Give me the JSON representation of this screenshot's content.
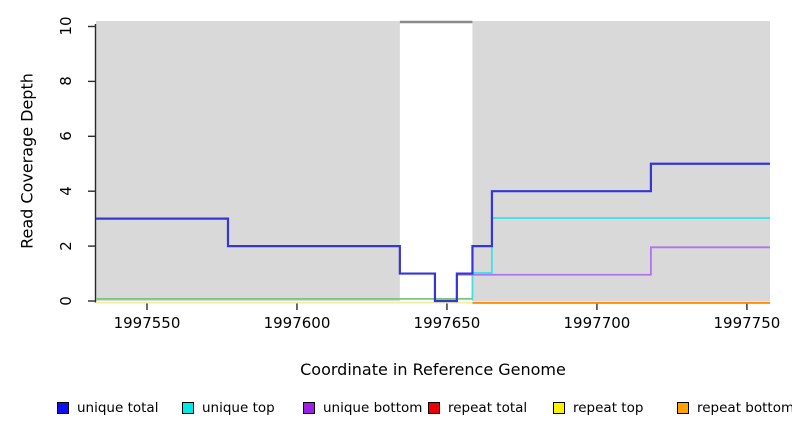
{
  "chart_data": {
    "type": "line",
    "subtype": "step",
    "title": "",
    "xlabel": "Coordinate in Reference Genome",
    "ylabel": "Read Coverage Depth",
    "xlim": [
      1997533,
      1997757.7
    ],
    "ylim": [
      0,
      10.2
    ],
    "x_ticks": [
      1997550,
      1997600,
      1997650,
      1997700,
      1997750
    ],
    "y_ticks": [
      0,
      2,
      4,
      6,
      8,
      10
    ],
    "grid": false,
    "panel_color": "#d9d9d9",
    "gap_region": {
      "from": 1997634.3,
      "to": 1997658.5,
      "fill": "#ffffff",
      "cap_color": "#8a8a8a"
    },
    "zero_overlap_line": {
      "color": "#7cc67c",
      "from": 1997533,
      "to": 1997658.5,
      "value": 0
    },
    "series": [
      {
        "name": "unique total",
        "line_color": "#3636d6",
        "hidden": false,
        "points": [
          [
            1997533,
            3
          ],
          [
            1997577,
            2
          ],
          [
            1997634.3,
            1
          ],
          [
            1997646,
            0
          ],
          [
            1997653.3,
            1
          ],
          [
            1997658.5,
            2
          ],
          [
            1997665,
            4
          ],
          [
            1997718,
            5
          ],
          [
            1997757.7,
            5
          ]
        ]
      },
      {
        "name": "unique top",
        "line_color": "#45e0e4",
        "hidden": false,
        "points": [
          [
            1997658.5,
            0
          ],
          [
            1997658.5,
            1
          ],
          [
            1997665,
            3
          ],
          [
            1997757.7,
            3
          ]
        ]
      },
      {
        "name": "unique bottom",
        "line_color": "#b273ee",
        "hidden": false,
        "points": [
          [
            1997653.3,
            0
          ],
          [
            1997653.3,
            1
          ],
          [
            1997718,
            2
          ],
          [
            1997757.7,
            2
          ]
        ]
      },
      {
        "name": "repeat total",
        "line_color": "#ee0000",
        "hidden": true,
        "points": [
          [
            1997533,
            0
          ],
          [
            1997757.7,
            0
          ]
        ]
      },
      {
        "name": "repeat top",
        "line_color": "#ededa6",
        "hidden": false,
        "points": [
          [
            1997533,
            0
          ],
          [
            1997658.5,
            0
          ]
        ]
      },
      {
        "name": "repeat bottom",
        "line_color": "#ff8c0a",
        "hidden": false,
        "points": [
          [
            1997658.5,
            0
          ],
          [
            1997757.7,
            0
          ]
        ]
      }
    ],
    "legend": {
      "position": "bottom",
      "items": [
        {
          "label": "unique total",
          "color": "#0f0fef"
        },
        {
          "label": "unique top",
          "color": "#00e8e8"
        },
        {
          "label": "unique bottom",
          "color": "#9d1fe8"
        },
        {
          "label": "repeat total",
          "color": "#ee0000"
        },
        {
          "label": "repeat top",
          "color": "#fef200"
        },
        {
          "label": "repeat bottom",
          "color": "#ffa200"
        }
      ]
    }
  }
}
